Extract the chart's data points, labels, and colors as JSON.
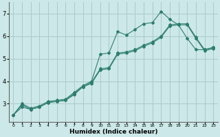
{
  "title": "",
  "xlabel": "Humidex (Indice chaleur)",
  "bg_color": "#cce8e8",
  "grid_color": "#aacaca",
  "line_color": "#2d7d6e",
  "xlim": [
    -0.5,
    23.5
  ],
  "ylim": [
    2.2,
    7.5
  ],
  "yticks": [
    2,
    3,
    4,
    5,
    6,
    7
  ],
  "xticks": [
    0,
    1,
    2,
    3,
    4,
    5,
    6,
    7,
    8,
    9,
    10,
    11,
    12,
    13,
    14,
    15,
    16,
    17,
    18,
    19,
    20,
    21,
    22,
    23
  ],
  "line1_x": [
    0,
    1,
    2,
    3,
    4,
    5,
    6,
    7,
    8,
    9,
    10,
    11,
    12,
    13,
    14,
    15,
    16,
    17,
    18,
    19,
    20,
    21,
    22,
    23
  ],
  "line1_y": [
    2.5,
    3.0,
    2.8,
    2.9,
    3.1,
    3.15,
    3.2,
    3.5,
    3.8,
    4.0,
    5.2,
    5.25,
    6.2,
    6.05,
    6.3,
    6.55,
    6.6,
    7.1,
    6.75,
    6.5,
    5.9,
    5.4,
    5.4,
    5.5
  ],
  "line2_x": [
    0,
    1,
    2,
    3,
    4,
    5,
    6,
    7,
    8,
    9,
    10,
    11,
    12,
    13,
    14,
    15,
    16,
    17,
    18,
    19,
    20,
    21,
    22,
    23
  ],
  "line2_y": [
    2.5,
    2.95,
    2.75,
    2.85,
    3.05,
    3.1,
    3.15,
    3.45,
    3.75,
    3.95,
    4.55,
    4.6,
    5.25,
    5.3,
    5.4,
    5.6,
    5.75,
    6.0,
    6.5,
    6.55,
    6.55,
    5.95,
    5.4,
    5.5
  ],
  "line3_x": [
    0,
    1,
    2,
    3,
    4,
    5,
    6,
    7,
    8,
    9,
    10,
    11,
    12,
    13,
    14,
    15,
    16,
    17,
    18,
    19,
    20,
    21,
    22,
    23
  ],
  "line3_y": [
    2.5,
    2.85,
    2.75,
    2.85,
    3.05,
    3.1,
    3.15,
    3.4,
    3.75,
    3.9,
    4.5,
    4.55,
    5.2,
    5.25,
    5.35,
    5.55,
    5.7,
    5.95,
    6.45,
    6.5,
    6.5,
    5.9,
    5.35,
    5.45
  ]
}
